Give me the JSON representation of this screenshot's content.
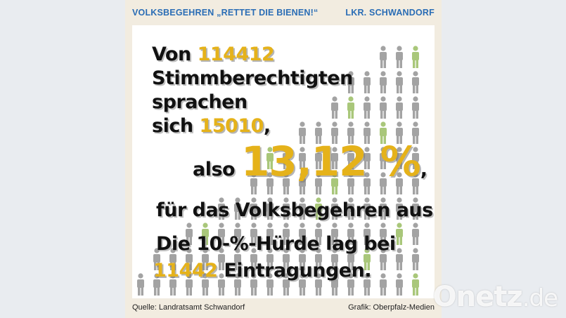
{
  "header": {
    "left_title": "VOLKSBEGEHREN „RETTET DIE BIENEN!“",
    "right_title": "LKR. SCHWANDORF"
  },
  "statement": {
    "line1_prefix": "Von",
    "eligible_voters": "114412",
    "line2": "Stimmberechtigten",
    "line3": "sprachen",
    "line4_prefix": "sich",
    "signatures": "15010",
    "line4_suffix": ",",
    "line5_prefix": "also",
    "percentage": "13,12 %",
    "line5_suffix": ",",
    "line6": "für das Volksbegehren aus.",
    "line7": "Die 10-%-Hürde lag bei",
    "threshold": "11442",
    "line8_suffix": "Eintragungen."
  },
  "footer": {
    "source": "Quelle: Landratsamt Schwandorf",
    "credit": "Grafik: Oberpfalz-Medien"
  },
  "watermark": {
    "brand": "Onetz",
    "tld": ".de"
  },
  "colors": {
    "accent_number": "#e5b21a",
    "header_blue": "#2a6db5",
    "person_gray": "#a3a3a3",
    "person_green": "#a9c77a"
  }
}
